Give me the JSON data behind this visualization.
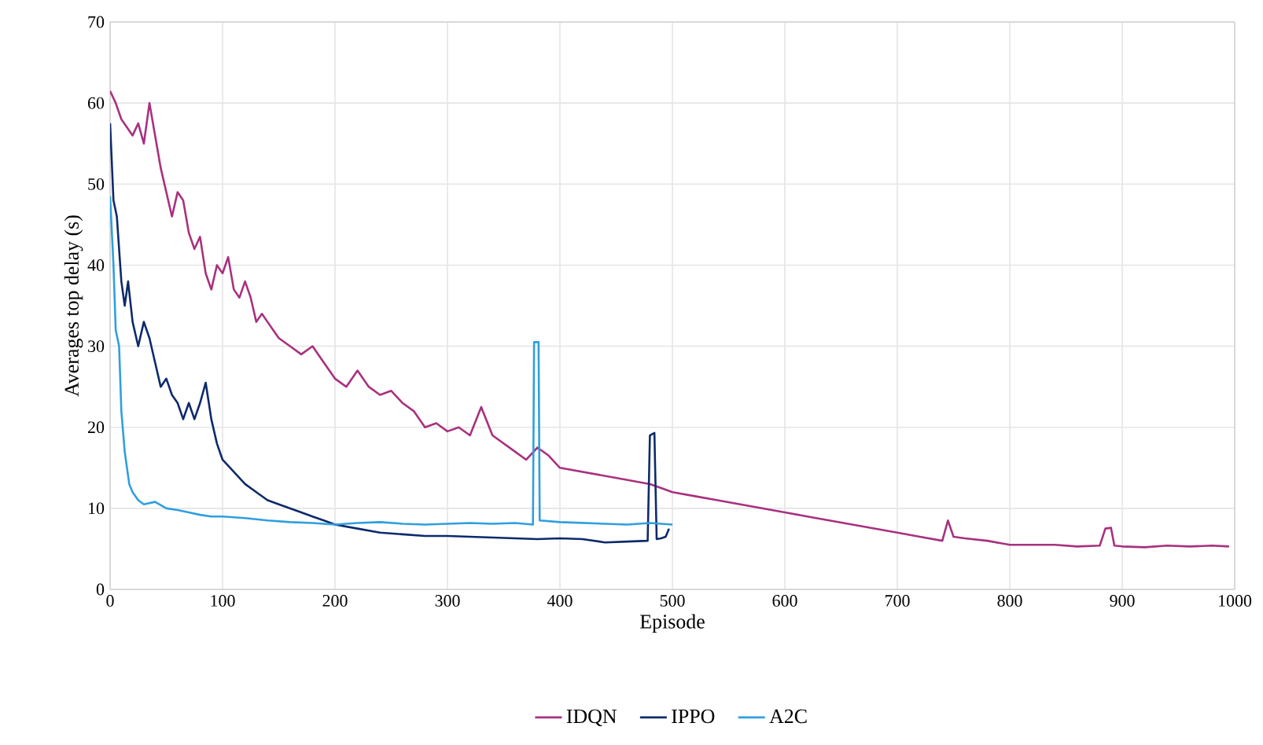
{
  "chart_data": {
    "type": "line",
    "xlabel": "Episode",
    "ylabel": "Averages top delay (s)",
    "xlim": [
      0,
      1000
    ],
    "ylim": [
      0,
      70
    ],
    "xticks": [
      0,
      100,
      200,
      300,
      400,
      500,
      600,
      700,
      800,
      900,
      1000
    ],
    "yticks": [
      0,
      10,
      20,
      30,
      40,
      50,
      60,
      70
    ],
    "grid": true,
    "legend": "bottom",
    "marker": "none",
    "line_style": "solid",
    "series": [
      {
        "name": "IDQN",
        "color": "#a8317e",
        "x": [
          0,
          5,
          10,
          15,
          20,
          25,
          30,
          35,
          40,
          45,
          50,
          55,
          60,
          65,
          70,
          75,
          80,
          85,
          90,
          95,
          100,
          105,
          110,
          115,
          120,
          125,
          130,
          135,
          140,
          145,
          150,
          160,
          170,
          180,
          190,
          200,
          210,
          220,
          230,
          240,
          250,
          260,
          270,
          280,
          290,
          300,
          310,
          320,
          330,
          340,
          350,
          360,
          370,
          380,
          390,
          400,
          420,
          440,
          460,
          480,
          490,
          500,
          520,
          540,
          560,
          580,
          600,
          620,
          640,
          660,
          680,
          700,
          720,
          740,
          745,
          750,
          760,
          780,
          800,
          820,
          840,
          860,
          880,
          885,
          890,
          893,
          900,
          920,
          940,
          960,
          980,
          995
        ],
        "values": [
          61.5,
          60,
          58,
          57,
          56,
          57.5,
          55,
          60,
          56,
          52,
          49,
          46,
          49,
          48,
          44,
          42,
          43.5,
          39,
          37,
          40,
          39,
          41,
          37,
          36,
          38,
          36,
          33,
          34,
          33,
          32,
          31,
          30,
          29,
          30,
          28,
          26,
          25,
          27,
          25,
          24,
          24.5,
          23,
          22,
          20,
          20.5,
          19.5,
          20,
          19,
          22.5,
          19,
          18,
          17,
          16,
          17.5,
          16.5,
          15,
          14.5,
          14,
          13.5,
          13,
          12.5,
          12,
          11.5,
          11,
          10.5,
          10,
          9.5,
          9,
          8.5,
          8,
          7.5,
          7,
          6.5,
          6,
          8.5,
          6.5,
          6.3,
          6,
          5.5,
          5.5,
          5.5,
          5.3,
          5.4,
          7.5,
          7.6,
          5.4,
          5.3,
          5.2,
          5.4,
          5.3,
          5.4,
          5.3
        ]
      },
      {
        "name": "IPPO",
        "color": "#0d2a6b",
        "x": [
          0,
          3,
          6,
          10,
          13,
          16,
          20,
          25,
          30,
          35,
          40,
          45,
          50,
          55,
          60,
          65,
          70,
          75,
          80,
          85,
          90,
          95,
          100,
          110,
          120,
          130,
          140,
          150,
          160,
          170,
          180,
          190,
          200,
          220,
          240,
          260,
          280,
          300,
          320,
          340,
          360,
          380,
          400,
          420,
          440,
          460,
          478,
          480,
          484,
          486,
          490,
          494,
          497
        ],
        "values": [
          57.5,
          48,
          46,
          38,
          35,
          38,
          33,
          30,
          33,
          31,
          28,
          25,
          26,
          24,
          23,
          21,
          23,
          21,
          23,
          25.5,
          21,
          18,
          16,
          14.5,
          13,
          12,
          11,
          10.5,
          10,
          9.5,
          9,
          8.5,
          8,
          7.5,
          7,
          6.8,
          6.6,
          6.6,
          6.5,
          6.4,
          6.3,
          6.2,
          6.3,
          6.2,
          5.8,
          5.9,
          6,
          19,
          19.3,
          6.2,
          6.3,
          6.5,
          7.5
        ]
      },
      {
        "name": "A2C",
        "color": "#2f9fde",
        "x": [
          0,
          3,
          5,
          8,
          10,
          13,
          17,
          20,
          25,
          30,
          40,
          50,
          60,
          70,
          80,
          90,
          100,
          120,
          140,
          160,
          180,
          200,
          220,
          240,
          260,
          280,
          300,
          320,
          340,
          360,
          376,
          377,
          381,
          382,
          400,
          420,
          440,
          460,
          480,
          500
        ],
        "values": [
          48.5,
          40,
          32,
          30,
          22,
          17,
          13,
          12,
          11,
          10.5,
          10.8,
          10,
          9.8,
          9.5,
          9.2,
          9,
          9,
          8.8,
          8.5,
          8.3,
          8.2,
          8,
          8.2,
          8.3,
          8.1,
          8,
          8.1,
          8.2,
          8.1,
          8.2,
          8,
          30.5,
          30.5,
          8.5,
          8.3,
          8.2,
          8.1,
          8,
          8.2,
          8
        ]
      }
    ]
  }
}
